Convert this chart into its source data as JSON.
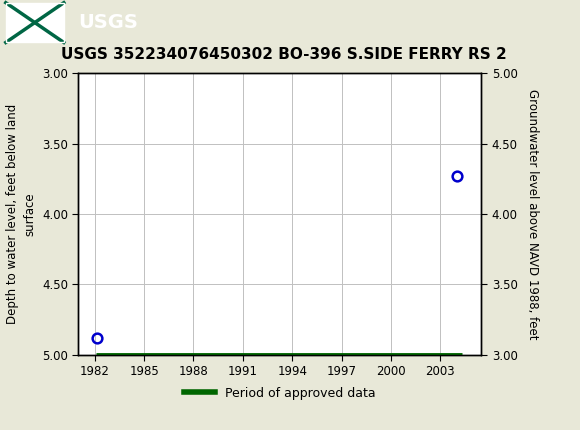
{
  "title": "USGS 352234076450302 BO-396 S.SIDE FERRY RS 2",
  "ylabel_left": "Depth to water level, feet below land\nsurface",
  "ylabel_right": "Groundwater level above NAVD 1988, feet",
  "ylim_left": [
    5.0,
    3.0
  ],
  "ylim_right": [
    3.0,
    5.0
  ],
  "xlim": [
    1981,
    2005.5
  ],
  "xticks": [
    1982,
    1985,
    1988,
    1991,
    1994,
    1997,
    2000,
    2003
  ],
  "yticks_left": [
    3.0,
    3.5,
    4.0,
    4.5,
    5.0
  ],
  "yticks_right": [
    5.0,
    4.5,
    4.0,
    3.5,
    3.0
  ],
  "data_points_x": [
    1982.15,
    2004.0
  ],
  "data_points_y": [
    4.88,
    3.73
  ],
  "green_bar_x_start": 1982.05,
  "green_bar_x_end": 2004.3,
  "point_color": "#0000cc",
  "green_color": "#006600",
  "background_color": "#e8e8d8",
  "plot_bg_color": "#ffffff",
  "grid_color": "#c0c0c0",
  "header_bg_color": "#006644",
  "title_fontsize": 11,
  "axis_label_fontsize": 8.5,
  "tick_fontsize": 8.5,
  "legend_label": "Period of approved data",
  "legend_fontsize": 9
}
